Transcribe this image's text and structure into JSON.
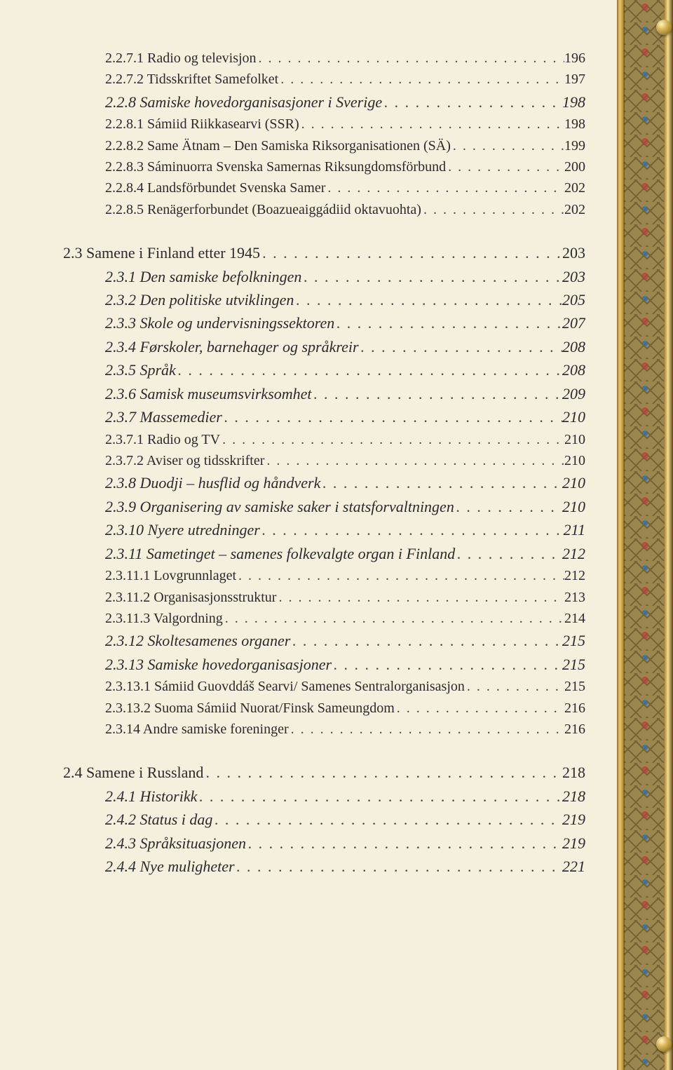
{
  "toc": [
    {
      "indent": "ind0",
      "size": "sz20",
      "italic": false,
      "label": "2.2.7.1 Radio og televisjon",
      "page": "196"
    },
    {
      "indent": "ind0",
      "size": "sz20",
      "italic": false,
      "label": "2.2.7.2 Tidsskriftet Samefolket",
      "page": "197"
    },
    {
      "indent": "ind0",
      "size": "sz22",
      "italic": true,
      "label": "2.2.8 Samiske hovedorganisasjoner i Sverige",
      "page": "198"
    },
    {
      "indent": "ind0",
      "size": "sz20",
      "italic": false,
      "label": "2.2.8.1 Sámiid Riikkasearvi (SSR)",
      "page": "198"
    },
    {
      "indent": "ind0",
      "size": "sz20",
      "italic": false,
      "label": "2.2.8.2 Same Ätnam – Den Samiska Riksorganisationen (SÄ)",
      "page": "199"
    },
    {
      "indent": "ind0",
      "size": "sz20",
      "italic": false,
      "label": "2.2.8.3 Sáminuorra Svenska Samernas Riksungdomsförbund",
      "page": "200"
    },
    {
      "indent": "ind0",
      "size": "sz20",
      "italic": false,
      "label": "2.2.8.4 Landsförbundet Svenska Samer",
      "page": "202"
    },
    {
      "indent": "ind0",
      "size": "sz20",
      "italic": false,
      "label": "2.2.8.5 Renägerforbundet (Boazueaiggádiid oktavuohta)",
      "page": "202"
    },
    {
      "gap": true,
      "indent": "ind1",
      "size": "sz22",
      "italic": false,
      "label": "2.3     Samene i Finland etter 1945",
      "page": "203"
    },
    {
      "indent": "ind2",
      "size": "sz22",
      "italic": true,
      "label": "2.3.1 Den samiske befolkningen",
      "page": "203"
    },
    {
      "indent": "ind2",
      "size": "sz22",
      "italic": true,
      "label": "2.3.2 Den politiske utviklingen",
      "page": "205"
    },
    {
      "indent": "ind2",
      "size": "sz22",
      "italic": true,
      "label": "2.3.3 Skole og undervisningssektoren",
      "page": "207"
    },
    {
      "indent": "ind2",
      "size": "sz22",
      "italic": true,
      "label": "2.3.4 Førskoler, barnehager og språkreir",
      "page": "208"
    },
    {
      "indent": "ind2",
      "size": "sz22",
      "italic": true,
      "label": "2.3.5 Språk",
      "page": "208"
    },
    {
      "indent": "ind2",
      "size": "sz22",
      "italic": true,
      "label": "2.3.6 Samisk museumsvirksomhet",
      "page": "209"
    },
    {
      "indent": "ind2",
      "size": "sz22",
      "italic": true,
      "label": "2.3.7 Massemedier",
      "page": "210"
    },
    {
      "indent": "ind0",
      "size": "sz20",
      "italic": false,
      "label": "2.3.7.1 Radio og TV",
      "page": "210"
    },
    {
      "indent": "ind0",
      "size": "sz20",
      "italic": false,
      "label": "2.3.7.2 Aviser og tidsskrifter",
      "page": "210"
    },
    {
      "indent": "ind2",
      "size": "sz22",
      "italic": true,
      "label": "2.3.8 Duodji – husflid og håndverk",
      "page": "210"
    },
    {
      "indent": "ind2",
      "size": "sz22",
      "italic": true,
      "label": "2.3.9 Organisering av samiske saker i statsforvaltningen",
      "page": "210"
    },
    {
      "indent": "ind2",
      "size": "sz22",
      "italic": true,
      "label": "2.3.10 Nyere utredninger",
      "page": "211"
    },
    {
      "indent": "ind2",
      "size": "sz22",
      "italic": true,
      "label": "2.3.11 Sametinget – samenes folkevalgte organ i Finland",
      "page": "212"
    },
    {
      "indent": "ind0",
      "size": "sz20",
      "italic": false,
      "label": "2.3.11.1 Lovgrunnlaget",
      "page": "212"
    },
    {
      "indent": "ind0",
      "size": "sz20",
      "italic": false,
      "label": "2.3.11.2 Organisasjonsstruktur",
      "page": "213"
    },
    {
      "indent": "ind0",
      "size": "sz20",
      "italic": false,
      "label": "2.3.11.3 Valgordning",
      "page": "214"
    },
    {
      "indent": "ind2",
      "size": "sz22",
      "italic": true,
      "label": "2.3.12 Skoltesamenes organer",
      "page": "215"
    },
    {
      "indent": "ind2",
      "size": "sz22",
      "italic": true,
      "label": "2.3.13 Samiske hovedorganisasjoner",
      "page": "215"
    },
    {
      "indent": "ind0",
      "size": "sz20",
      "italic": false,
      "label": "2.3.13.1 Sámiid Guovddáš Searvi/ Samenes Sentralorganisasjon",
      "page": "215"
    },
    {
      "indent": "ind0",
      "size": "sz20",
      "italic": false,
      "label": "2.3.13.2 Suoma Sámiid Nuorat/Finsk Sameungdom",
      "page": "216"
    },
    {
      "indent": "ind0",
      "size": "sz20",
      "italic": false,
      "label": "2.3.14 Andre samiske foreninger",
      "page": "216"
    },
    {
      "gap": true,
      "indent": "ind1",
      "size": "sz22",
      "italic": false,
      "label": "2.4     Samene i Russland",
      "page": "218"
    },
    {
      "indent": "ind2",
      "size": "sz22",
      "italic": true,
      "label": "2.4.1 Historikk",
      "page": "218"
    },
    {
      "indent": "ind2",
      "size": "sz22",
      "italic": true,
      "label": "2.4.2 Status i dag",
      "page": "219"
    },
    {
      "indent": "ind2",
      "size": "sz22",
      "italic": true,
      "label": "2.4.3 Språksituasjonen",
      "page": "219"
    },
    {
      "indent": "ind2",
      "size": "sz22",
      "italic": true,
      "label": "2.4.4 Nye muligheter",
      "page": "221"
    }
  ],
  "knobs": [
    28,
    1478
  ]
}
